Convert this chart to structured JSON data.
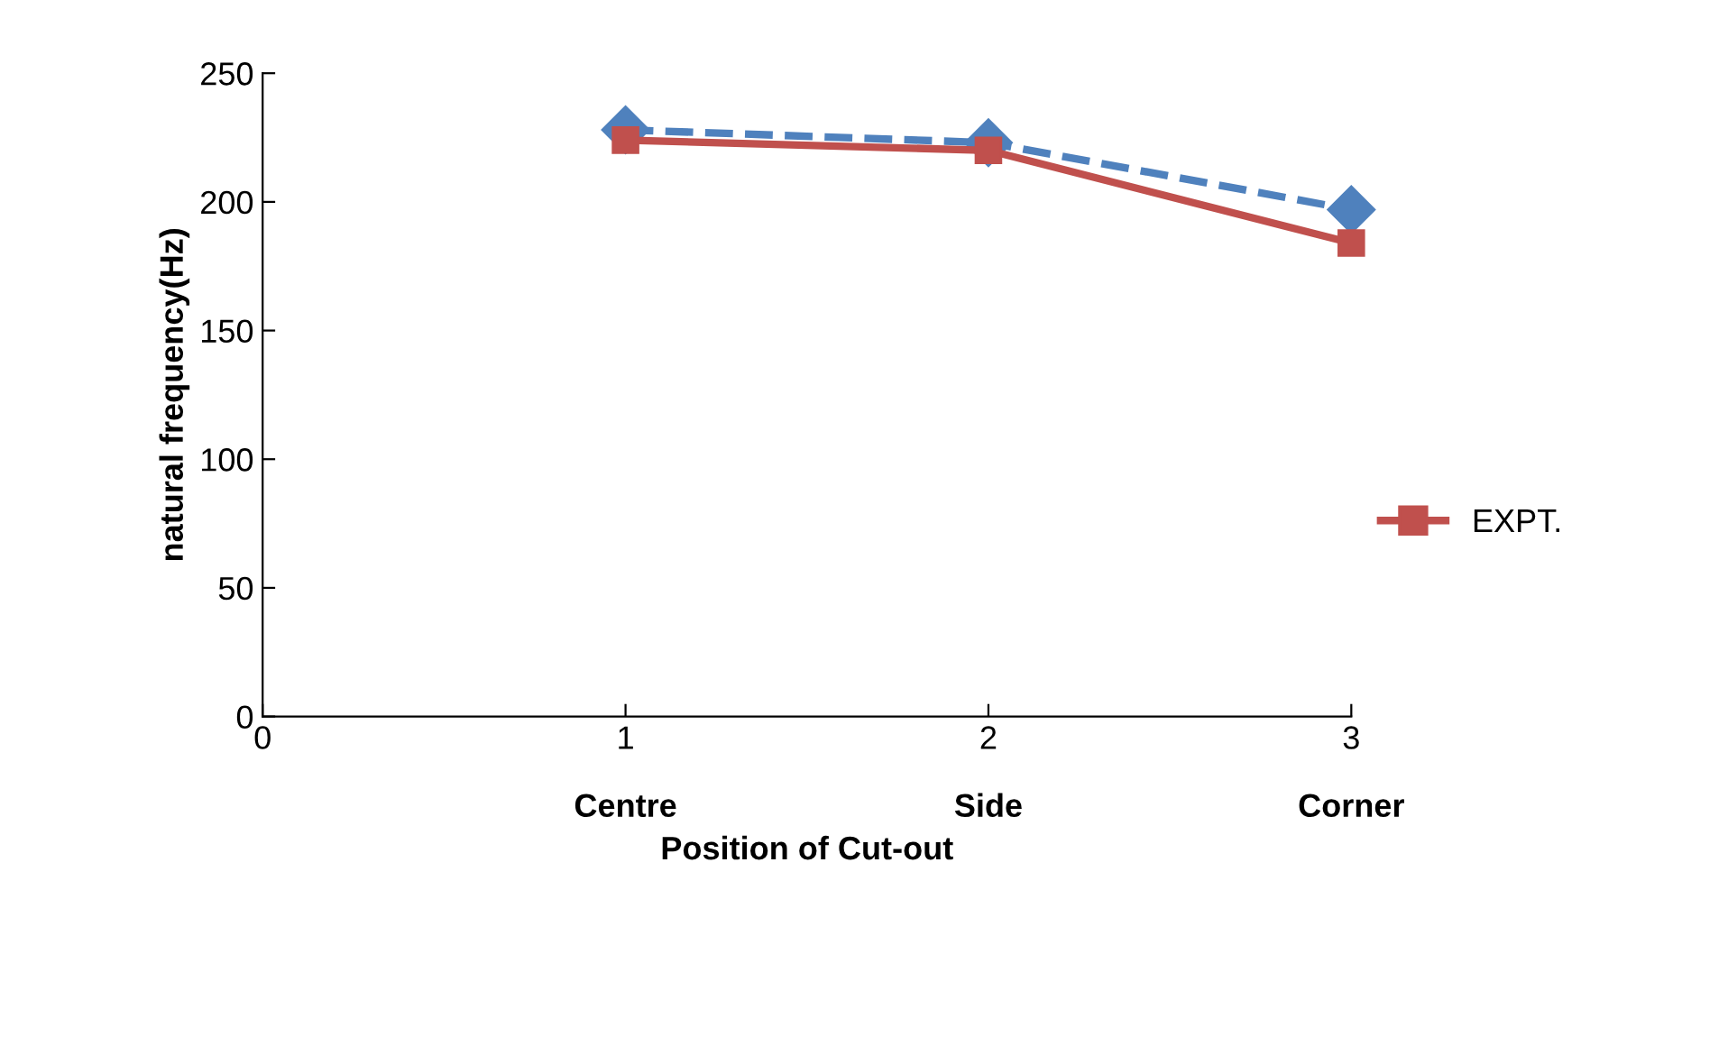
{
  "chart_data": {
    "type": "line",
    "xlabel": "Position of Cut-out",
    "ylabel": "natural frequency(Hz)",
    "x": [
      1,
      2,
      3
    ],
    "series": [
      {
        "color": "#4f81bd",
        "values": [
          228,
          223,
          197
        ],
        "marker": "diamond",
        "line_style": "dashed"
      },
      {
        "name": "EXPT.",
        "color": "#c0504d",
        "values": [
          224,
          220,
          184
        ],
        "marker": "square",
        "line_style": "solid"
      }
    ],
    "xlim": [
      0,
      3
    ],
    "xticks": [
      0,
      1,
      2,
      3
    ],
    "ylim": [
      0,
      250
    ],
    "yticks": [
      0,
      50,
      100,
      150,
      200,
      250
    ],
    "annotations": [
      "Centre",
      "Side",
      "Corner"
    ],
    "grid": false,
    "legend": "right"
  }
}
